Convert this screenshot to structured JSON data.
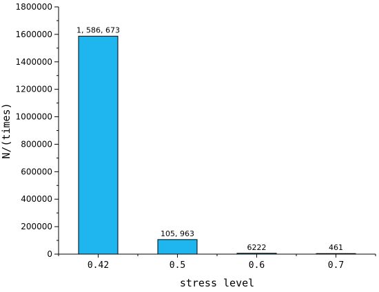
{
  "chart_data": {
    "type": "bar",
    "categories": [
      "0.42",
      "0.5",
      "0.6",
      "0.7"
    ],
    "values": [
      1586673,
      105963,
      6222,
      461
    ],
    "data_labels": [
      "1, 586, 673",
      "105, 963",
      "6222",
      "461"
    ],
    "xlabel": "stress level",
    "ylabel": "N/(times)",
    "ylim": [
      0,
      1800000
    ],
    "yticks": [
      0,
      200000,
      400000,
      600000,
      800000,
      1000000,
      1200000,
      1400000,
      1600000,
      1800000
    ],
    "ytick_labels": [
      "0",
      "200000",
      "400000",
      "600000",
      "800000",
      "1000000",
      "1200000",
      "1400000",
      "1600000",
      "1800000"
    ],
    "grid": false,
    "legend": "none",
    "colors": {
      "bar": "#1fb6f0",
      "bar_edge": "#000000"
    }
  }
}
